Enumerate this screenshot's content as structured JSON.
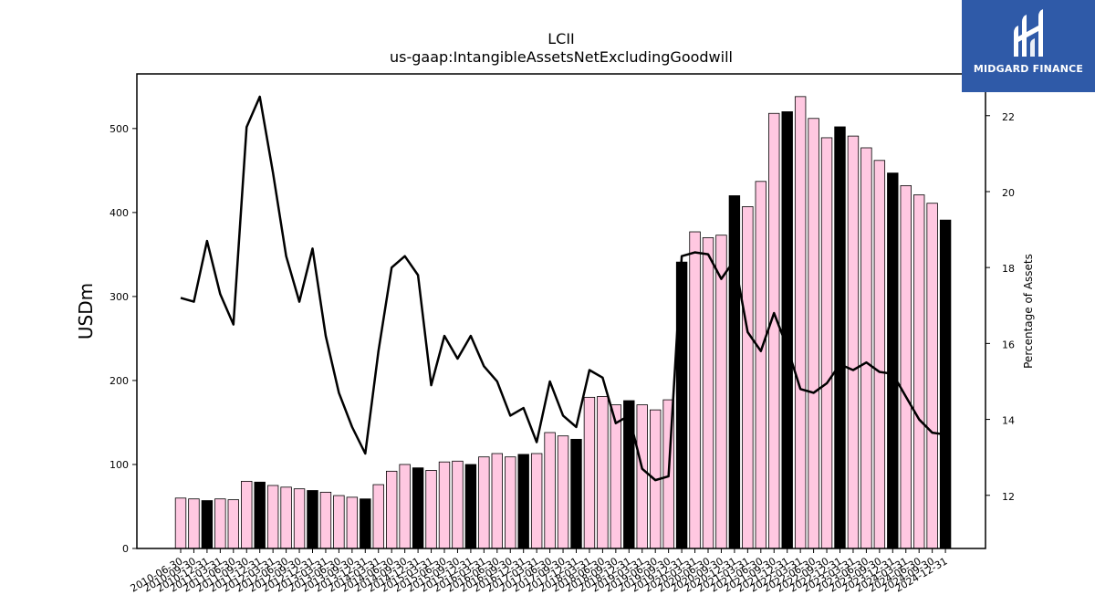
{
  "colors": {
    "bar_default": "#ffc8e1",
    "bar_q4": "#000000",
    "line": "#000000",
    "logo_bg": "#2f5aa8"
  },
  "logo": {
    "text": "MIDGARD FINANCE",
    "icon": "midgard-logo-icon"
  },
  "chart_data": {
    "type": "bar",
    "title": "LCII",
    "subtitle": "us-gaap:IntangibleAssetsNetExcludingGoodwill",
    "ylabel": "USDm",
    "y2label": "Percentage of Assets",
    "ylim": [
      0,
      565
    ],
    "y2lim": [
      10.6,
      23.1
    ],
    "yticks": [
      0,
      100,
      200,
      300,
      400,
      500
    ],
    "y2ticks": [
      12,
      14,
      16,
      18,
      20,
      22
    ],
    "x": [
      "2010-06-30",
      "2010-09-30",
      "2010-12-31",
      "2011-03-31",
      "2011-06-30",
      "2011-09-30",
      "2011-12-31",
      "2012-03-31",
      "2012-06-30",
      "2012-09-30",
      "2012-12-31",
      "2013-03-31",
      "2013-06-30",
      "2013-09-30",
      "2013-12-31",
      "2014-03-31",
      "2014-06-30",
      "2014-09-30",
      "2014-12-31",
      "2015-03-31",
      "2015-06-30",
      "2015-09-30",
      "2015-12-31",
      "2016-03-31",
      "2016-06-30",
      "2016-09-30",
      "2016-12-31",
      "2017-03-31",
      "2017-06-30",
      "2017-09-30",
      "2017-12-31",
      "2018-03-31",
      "2018-06-30",
      "2018-09-30",
      "2018-12-31",
      "2019-03-31",
      "2019-06-30",
      "2019-09-30",
      "2019-12-31",
      "2020-03-31",
      "2020-06-30",
      "2020-09-30",
      "2020-12-31",
      "2021-03-31",
      "2021-06-30",
      "2021-09-30",
      "2021-12-31",
      "2022-03-31",
      "2022-06-30",
      "2022-09-30",
      "2022-12-31",
      "2023-03-31",
      "2023-06-30",
      "2023-09-30",
      "2023-12-31",
      "2024-03-31",
      "2024-06-30",
      "2024-09-30",
      "2024-12-31"
    ],
    "series": [
      {
        "kind": "bar",
        "axis": "left",
        "values": [
          60,
          59,
          57,
          59,
          58,
          80,
          79,
          75,
          73,
          71,
          69,
          67,
          63,
          61,
          59,
          76,
          92,
          100,
          96,
          93,
          103,
          104,
          100,
          109,
          113,
          109,
          112,
          113,
          138,
          134,
          130,
          180,
          181,
          171,
          176,
          171,
          165,
          177,
          341,
          377,
          370,
          373,
          420,
          407,
          437,
          518,
          520,
          538,
          512,
          489,
          502,
          491,
          477,
          462,
          447,
          432,
          421,
          411,
          391
        ],
        "dark_on": "12-31"
      },
      {
        "kind": "line",
        "axis": "right",
        "values": [
          17.2,
          17.1,
          18.7,
          17.3,
          16.5,
          21.7,
          22.5,
          20.5,
          18.3,
          17.1,
          18.5,
          16.2,
          14.7,
          13.8,
          13.1,
          15.8,
          18.0,
          18.3,
          17.8,
          14.9,
          16.2,
          15.6,
          16.2,
          15.4,
          15.0,
          14.1,
          14.3,
          13.4,
          15.0,
          14.1,
          13.8,
          15.3,
          15.1,
          13.9,
          14.1,
          12.7,
          12.4,
          12.5,
          18.3,
          18.4,
          18.35,
          17.7,
          18.2,
          16.3,
          15.8,
          16.8,
          15.9,
          14.8,
          14.7,
          14.95,
          15.45,
          15.3,
          15.5,
          15.25,
          15.2,
          14.6,
          14.0,
          13.65,
          13.6
        ]
      }
    ],
    "grid": false,
    "legend": "none"
  }
}
